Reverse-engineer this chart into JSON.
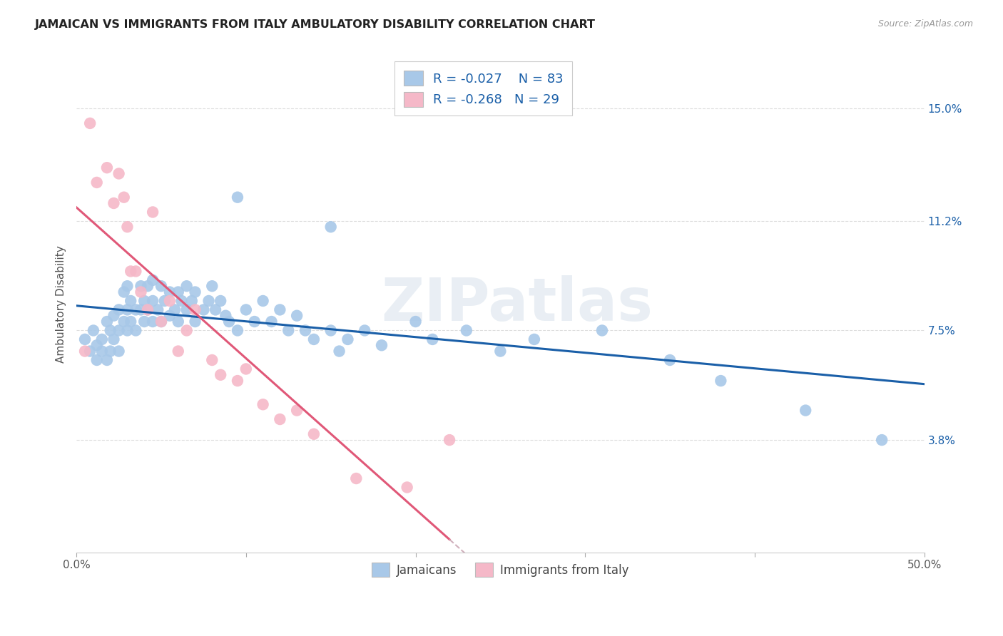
{
  "title": "JAMAICAN VS IMMIGRANTS FROM ITALY AMBULATORY DISABILITY CORRELATION CHART",
  "source": "Source: ZipAtlas.com",
  "ylabel": "Ambulatory Disability",
  "x_min": 0.0,
  "x_max": 0.5,
  "y_min": 0.0,
  "y_max": 0.168,
  "y_tick_positions": [
    0.038,
    0.075,
    0.112,
    0.15
  ],
  "y_tick_labels": [
    "3.8%",
    "7.5%",
    "11.2%",
    "15.0%"
  ],
  "background_color": "#ffffff",
  "grid_color": "#dddddd",
  "blue_color": "#a8c8e8",
  "pink_color": "#f5b8c8",
  "blue_line_color": "#1a5fa8",
  "pink_line_color": "#e05878",
  "pink_dashed_color": "#d0b0bc",
  "watermark": "ZIPatlas",
  "legend_r_blue": "-0.027",
  "legend_n_blue": "83",
  "legend_r_pink": "-0.268",
  "legend_n_pink": "29",
  "legend_label_blue": "Jamaicans",
  "legend_label_pink": "Immigrants from Italy",
  "blue_x": [
    0.005,
    0.008,
    0.01,
    0.012,
    0.012,
    0.015,
    0.015,
    0.018,
    0.018,
    0.02,
    0.02,
    0.022,
    0.022,
    0.025,
    0.025,
    0.025,
    0.028,
    0.028,
    0.03,
    0.03,
    0.03,
    0.032,
    0.032,
    0.035,
    0.035,
    0.038,
    0.038,
    0.04,
    0.04,
    0.042,
    0.042,
    0.045,
    0.045,
    0.045,
    0.048,
    0.05,
    0.05,
    0.052,
    0.055,
    0.055,
    0.058,
    0.06,
    0.06,
    0.062,
    0.065,
    0.065,
    0.068,
    0.07,
    0.07,
    0.075,
    0.078,
    0.08,
    0.082,
    0.085,
    0.088,
    0.09,
    0.095,
    0.1,
    0.105,
    0.11,
    0.115,
    0.12,
    0.125,
    0.13,
    0.135,
    0.14,
    0.15,
    0.155,
    0.16,
    0.17,
    0.18,
    0.2,
    0.21,
    0.23,
    0.25,
    0.27,
    0.31,
    0.35,
    0.38,
    0.43,
    0.475,
    0.15,
    0.095
  ],
  "blue_y": [
    0.072,
    0.068,
    0.075,
    0.065,
    0.07,
    0.072,
    0.068,
    0.078,
    0.065,
    0.075,
    0.068,
    0.08,
    0.072,
    0.082,
    0.075,
    0.068,
    0.088,
    0.078,
    0.09,
    0.082,
    0.075,
    0.085,
    0.078,
    0.082,
    0.075,
    0.09,
    0.082,
    0.085,
    0.078,
    0.09,
    0.082,
    0.092,
    0.085,
    0.078,
    0.082,
    0.09,
    0.078,
    0.085,
    0.088,
    0.08,
    0.082,
    0.088,
    0.078,
    0.085,
    0.09,
    0.082,
    0.085,
    0.088,
    0.078,
    0.082,
    0.085,
    0.09,
    0.082,
    0.085,
    0.08,
    0.078,
    0.075,
    0.082,
    0.078,
    0.085,
    0.078,
    0.082,
    0.075,
    0.08,
    0.075,
    0.072,
    0.075,
    0.068,
    0.072,
    0.075,
    0.07,
    0.078,
    0.072,
    0.075,
    0.068,
    0.072,
    0.075,
    0.065,
    0.058,
    0.048,
    0.038,
    0.11,
    0.12
  ],
  "pink_x": [
    0.005,
    0.008,
    0.012,
    0.018,
    0.022,
    0.025,
    0.028,
    0.03,
    0.032,
    0.035,
    0.038,
    0.042,
    0.045,
    0.05,
    0.055,
    0.06,
    0.065,
    0.07,
    0.08,
    0.085,
    0.095,
    0.1,
    0.11,
    0.12,
    0.13,
    0.14,
    0.165,
    0.195,
    0.22
  ],
  "pink_y": [
    0.068,
    0.145,
    0.125,
    0.13,
    0.118,
    0.128,
    0.12,
    0.11,
    0.095,
    0.095,
    0.088,
    0.082,
    0.115,
    0.078,
    0.085,
    0.068,
    0.075,
    0.082,
    0.065,
    0.06,
    0.058,
    0.062,
    0.05,
    0.045,
    0.048,
    0.04,
    0.025,
    0.022,
    0.038
  ]
}
